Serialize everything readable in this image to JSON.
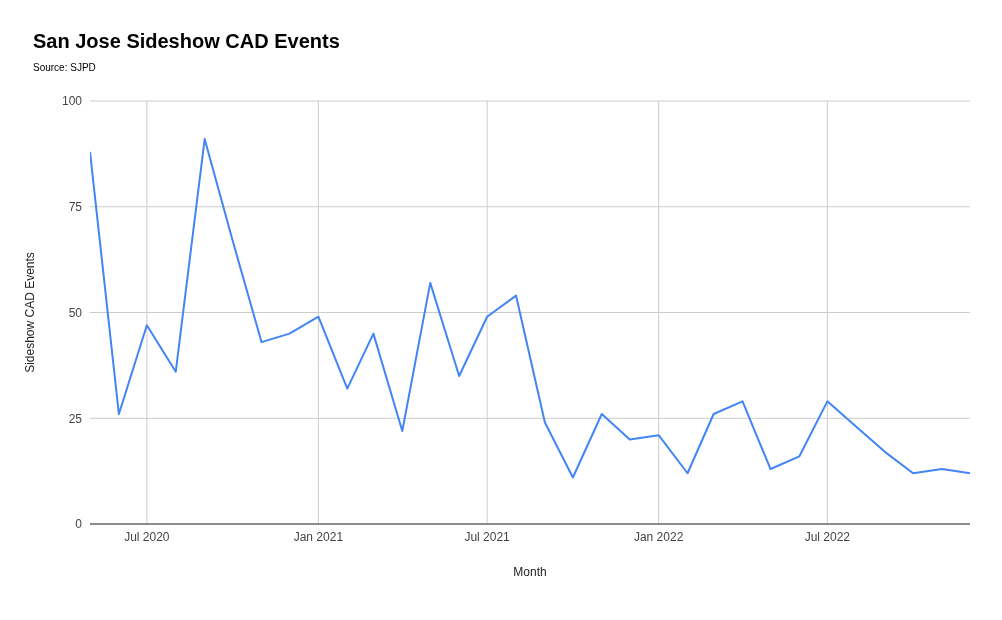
{
  "chart_data": {
    "type": "line",
    "title": "San Jose Sideshow CAD Events",
    "subtitle": "Source: SJPD",
    "xlabel": "Month",
    "ylabel": "Sideshow CAD Events",
    "x": [
      "2020-05",
      "2020-06",
      "2020-07",
      "2020-08",
      "2020-09",
      "2020-10",
      "2020-11",
      "2020-12",
      "2021-01",
      "2021-02",
      "2021-03",
      "2021-04",
      "2021-05",
      "2021-06",
      "2021-07",
      "2021-08",
      "2021-09",
      "2021-10",
      "2021-11",
      "2021-12",
      "2022-01",
      "2022-02",
      "2022-03",
      "2022-04",
      "2022-05",
      "2022-06",
      "2022-07",
      "2022-08",
      "2022-09",
      "2022-10",
      "2022-11",
      "2022-12"
    ],
    "series": [
      {
        "color": "#4285f4",
        "values": [
          88,
          26,
          47,
          36,
          91,
          67,
          43,
          45,
          49,
          32,
          45,
          22,
          57,
          35,
          49,
          54,
          24,
          11,
          26,
          20,
          21,
          12,
          26,
          29,
          13,
          16,
          29,
          23,
          17,
          12,
          13,
          12
        ]
      }
    ],
    "xlim": [
      "2020-05",
      "2022-12"
    ],
    "xticks": [
      {
        "value": "2020-07",
        "label": "Jul 2020"
      },
      {
        "value": "2021-01",
        "label": "Jan 2021"
      },
      {
        "value": "2021-07",
        "label": "Jul 2021"
      },
      {
        "value": "2022-01",
        "label": "Jan 2022"
      },
      {
        "value": "2022-07",
        "label": "Jul 2022"
      }
    ],
    "ylim": [
      0,
      100
    ],
    "yticks": [
      0,
      25,
      50,
      75,
      100
    ],
    "grid": true,
    "legend": false,
    "marker": "none",
    "line_style": "solid"
  }
}
